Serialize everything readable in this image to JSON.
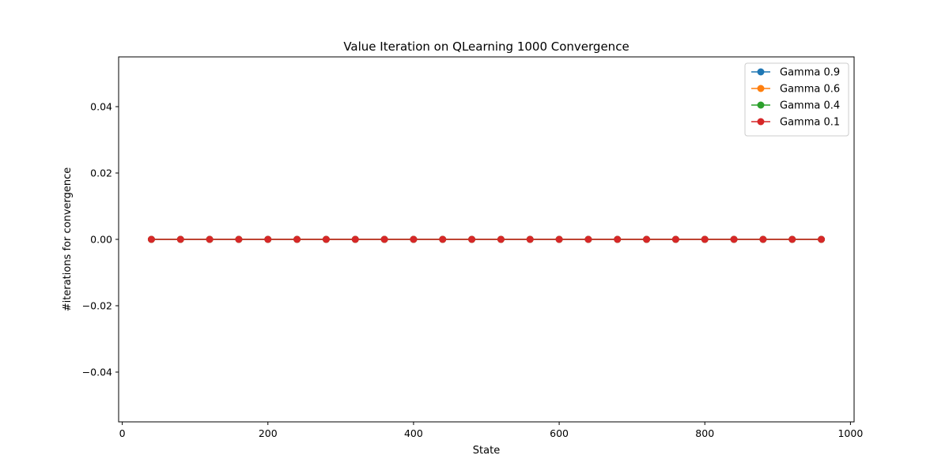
{
  "chart_data": {
    "type": "line",
    "title": "Value Iteration on QLearning 1000  Convergence",
    "xlabel": "State",
    "ylabel": "#iterations for convergence",
    "xlim": [
      -5,
      1005
    ],
    "ylim": [
      -0.055,
      0.055
    ],
    "x_ticks": [
      0,
      200,
      400,
      600,
      800,
      1000
    ],
    "x_tick_labels": [
      "0",
      "200",
      "400",
      "600",
      "800",
      "1000"
    ],
    "y_ticks": [
      -0.04,
      -0.02,
      0.0,
      0.02,
      0.04
    ],
    "y_tick_labels": [
      "−0.04",
      "−0.02",
      "0.00",
      "0.02",
      "0.04"
    ],
    "grid": false,
    "legend_position": "top-right",
    "x": [
      40,
      80,
      120,
      160,
      200,
      240,
      280,
      320,
      360,
      400,
      440,
      480,
      520,
      560,
      600,
      640,
      680,
      720,
      760,
      800,
      840,
      880,
      920,
      960
    ],
    "series": [
      {
        "name": "Gamma 0.9",
        "color": "#1f77b4",
        "marker": "circle",
        "values": [
          0,
          0,
          0,
          0,
          0,
          0,
          0,
          0,
          0,
          0,
          0,
          0,
          0,
          0,
          0,
          0,
          0,
          0,
          0,
          0,
          0,
          0,
          0,
          0
        ]
      },
      {
        "name": "Gamma 0.6",
        "color": "#ff7f0e",
        "marker": "circle",
        "values": [
          0,
          0,
          0,
          0,
          0,
          0,
          0,
          0,
          0,
          0,
          0,
          0,
          0,
          0,
          0,
          0,
          0,
          0,
          0,
          0,
          0,
          0,
          0,
          0
        ]
      },
      {
        "name": "Gamma 0.4",
        "color": "#2ca02c",
        "marker": "circle",
        "values": [
          0,
          0,
          0,
          0,
          0,
          0,
          0,
          0,
          0,
          0,
          0,
          0,
          0,
          0,
          0,
          0,
          0,
          0,
          0,
          0,
          0,
          0,
          0,
          0
        ]
      },
      {
        "name": "Gamma 0.1",
        "color": "#d62728",
        "marker": "circle",
        "values": [
          0,
          0,
          0,
          0,
          0,
          0,
          0,
          0,
          0,
          0,
          0,
          0,
          0,
          0,
          0,
          0,
          0,
          0,
          0,
          0,
          0,
          0,
          0,
          0
        ]
      }
    ]
  }
}
